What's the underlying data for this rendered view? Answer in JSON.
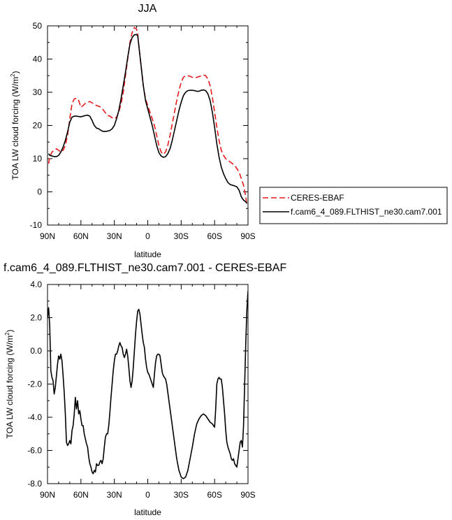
{
  "chart_data": [
    {
      "type": "line",
      "title": "JJA",
      "xlabel": "latitude",
      "ylabel": "TOA LW cloud forcing (W/m",
      "ylabel_sup": "2",
      "ylabel_end": ")",
      "xlim": [
        90,
        -90
      ],
      "ylim": [
        -10,
        50
      ],
      "xticks": [
        {
          "value": 90,
          "label": "90N"
        },
        {
          "value": 60,
          "label": "60N"
        },
        {
          "value": 30,
          "label": "30N"
        },
        {
          "value": 0,
          "label": "0"
        },
        {
          "value": -30,
          "label": "30S"
        },
        {
          "value": -60,
          "label": "60S"
        },
        {
          "value": -90,
          "label": "90S"
        }
      ],
      "yticks": [
        {
          "value": 50,
          "label": "50"
        },
        {
          "value": 40,
          "label": "40"
        },
        {
          "value": 30,
          "label": "30"
        },
        {
          "value": 20,
          "label": "20"
        },
        {
          "value": 10,
          "label": "10"
        },
        {
          "value": 0,
          "label": "0"
        },
        {
          "value": -10,
          "label": "-10"
        }
      ],
      "legend_placement": "right",
      "series": [
        {
          "name": "CERES-EBAF",
          "color": "#e41a1c",
          "dash": "dashed",
          "x": [
            89,
            88,
            86,
            84,
            82,
            80,
            78,
            76,
            74,
            72,
            70,
            68,
            66,
            64,
            62,
            60,
            58,
            56,
            54,
            52,
            50,
            48,
            46,
            44,
            42,
            40,
            38,
            36,
            34,
            32,
            30,
            28,
            26,
            24,
            22,
            20,
            18,
            16,
            14,
            12,
            10,
            9,
            8,
            6,
            4,
            2,
            0,
            -2,
            -4,
            -6,
            -8,
            -10,
            -12,
            -14,
            -16,
            -18,
            -20,
            -22,
            -24,
            -26,
            -28,
            -30,
            -32,
            -34,
            -36,
            -38,
            -40,
            -42,
            -44,
            -46,
            -48,
            -50,
            -52,
            -54,
            -56,
            -58,
            -60,
            -62,
            -64,
            -66,
            -68,
            -70,
            -72,
            -74,
            -76,
            -78,
            -80,
            -82,
            -84,
            -86,
            -88,
            -89
          ],
          "y": [
            8.5,
            10.5,
            12.0,
            12.5,
            13.0,
            12.5,
            12.0,
            12.5,
            14.0,
            17.0,
            22.0,
            26.5,
            28.0,
            28.2,
            27.5,
            25.5,
            26.0,
            26.7,
            27.0,
            27.2,
            26.8,
            26.5,
            26.0,
            25.8,
            25.5,
            24.7,
            23.8,
            23.0,
            22.8,
            22.3,
            22.0,
            22.5,
            24.0,
            26.5,
            30.0,
            35.0,
            40.0,
            45.0,
            48.0,
            49.5,
            49.0,
            47.5,
            44.0,
            38.0,
            32.0,
            28.0,
            26.0,
            24.0,
            22.0,
            20.0,
            17.0,
            14.0,
            12.0,
            11.3,
            12.0,
            14.0,
            17.0,
            20.5,
            24.0,
            27.5,
            30.5,
            33.0,
            34.5,
            35.0,
            35.0,
            34.8,
            34.5,
            34.3,
            34.5,
            34.7,
            35.0,
            35.2,
            35.0,
            34.0,
            32.0,
            28.5,
            24.0,
            19.5,
            15.5,
            12.5,
            11.0,
            10.0,
            9.5,
            9.0,
            8.5,
            8.0,
            7.0,
            6.0,
            4.0,
            2.0,
            -1.5,
            -4.0
          ]
        },
        {
          "name": "f.cam6_4_089.FLTHIST_ne30.cam7.001",
          "color": "#000000",
          "dash": "solid",
          "x": [
            89,
            88,
            86,
            84,
            82,
            80,
            78,
            76,
            74,
            72,
            70,
            68,
            66,
            64,
            62,
            60,
            58,
            56,
            54,
            52,
            50,
            48,
            46,
            44,
            42,
            40,
            38,
            36,
            34,
            32,
            30,
            28,
            26,
            24,
            22,
            20,
            18,
            16,
            14,
            12,
            10,
            9,
            8,
            6,
            4,
            2,
            0,
            -2,
            -4,
            -6,
            -8,
            -10,
            -12,
            -14,
            -16,
            -18,
            -20,
            -22,
            -24,
            -26,
            -28,
            -30,
            -32,
            -34,
            -36,
            -38,
            -40,
            -42,
            -44,
            -46,
            -48,
            -50,
            -52,
            -54,
            -56,
            -58,
            -60,
            -62,
            -64,
            -66,
            -68,
            -70,
            -72,
            -74,
            -76,
            -78,
            -80,
            -82,
            -84,
            -86,
            -88,
            -89
          ],
          "y": [
            11.5,
            11.0,
            10.8,
            10.6,
            10.6,
            11.0,
            12.0,
            13.5,
            15.5,
            18.0,
            21.0,
            22.5,
            22.8,
            22.8,
            22.7,
            22.6,
            22.8,
            23.0,
            23.1,
            22.8,
            21.5,
            20.0,
            19.2,
            19.0,
            18.5,
            18.2,
            18.2,
            18.3,
            18.5,
            19.0,
            20.0,
            22.0,
            24.5,
            28.0,
            32.0,
            36.0,
            40.5,
            44.5,
            46.5,
            47.3,
            47.4,
            47.0,
            44.0,
            38.0,
            32.0,
            27.5,
            25.0,
            22.5,
            20.0,
            17.0,
            14.0,
            11.8,
            10.8,
            10.4,
            10.6,
            11.5,
            13.0,
            15.5,
            18.5,
            21.5,
            24.5,
            27.0,
            29.0,
            30.0,
            30.5,
            30.6,
            30.6,
            30.5,
            30.3,
            30.3,
            30.6,
            30.7,
            30.5,
            29.5,
            27.5,
            24.0,
            19.5,
            14.5,
            10.5,
            7.5,
            5.5,
            4.0,
            2.8,
            2.2,
            2.0,
            1.8,
            1.5,
            0.5,
            -1.5,
            -2.5,
            -3.0,
            -3.5
          ]
        }
      ]
    },
    {
      "type": "line",
      "title": "f.cam6_4_089.FLTHIST_ne30.cam7.001 - CERES-EBAF",
      "xlabel": "latitude",
      "ylabel": "TOA LW cloud forcing (W/m",
      "ylabel_sup": "2",
      "ylabel_end": ")",
      "xlim": [
        90,
        -90
      ],
      "ylim": [
        -8,
        4
      ],
      "xticks": [
        {
          "value": 90,
          "label": "90N"
        },
        {
          "value": 60,
          "label": "60N"
        },
        {
          "value": 30,
          "label": "30N"
        },
        {
          "value": 0,
          "label": "0"
        },
        {
          "value": -30,
          "label": "30S"
        },
        {
          "value": -60,
          "label": "60S"
        },
        {
          "value": -90,
          "label": "90S"
        }
      ],
      "yticks": [
        {
          "value": 4,
          "label": "4.0"
        },
        {
          "value": 2,
          "label": "2.0"
        },
        {
          "value": 0,
          "label": "0.0"
        },
        {
          "value": -2,
          "label": "-2.0"
        },
        {
          "value": -4,
          "label": "-4.0"
        },
        {
          "value": -6,
          "label": "-6.0"
        },
        {
          "value": -8,
          "label": "-8.0"
        }
      ],
      "series": [
        {
          "name": "",
          "color": "#000000",
          "dash": "solid",
          "x": [
            90,
            89,
            88,
            87,
            86,
            85,
            84,
            83,
            82,
            81,
            80,
            79,
            78,
            77,
            76,
            75,
            74,
            73,
            72,
            71,
            70,
            69,
            68,
            67,
            66,
            65,
            64,
            63,
            62,
            61,
            60,
            59,
            58,
            57,
            56,
            55,
            54,
            53,
            52,
            51,
            50,
            49,
            48,
            47,
            46,
            45,
            44,
            43,
            42,
            41,
            40,
            39,
            38,
            37,
            36,
            35,
            34,
            33,
            32,
            31,
            30,
            29,
            28,
            27,
            26,
            25,
            24,
            23,
            22,
            21,
            20,
            19,
            18,
            17,
            16,
            15,
            14,
            13,
            12,
            11,
            10,
            9,
            8,
            7,
            6,
            5,
            4,
            3,
            2,
            1,
            0,
            -1,
            -2,
            -3,
            -4,
            -5,
            -6,
            -7,
            -8,
            -9,
            -10,
            -11,
            -12,
            -13,
            -14,
            -15,
            -16,
            -17,
            -18,
            -19,
            -20,
            -22,
            -24,
            -26,
            -28,
            -30,
            -32,
            -34,
            -36,
            -38,
            -40,
            -42,
            -44,
            -46,
            -48,
            -50,
            -52,
            -54,
            -56,
            -58,
            -60,
            -61,
            -62,
            -63,
            -64,
            -65,
            -66,
            -67,
            -68,
            -69,
            -70,
            -71,
            -72,
            -73,
            -74,
            -75,
            -76,
            -77,
            -78,
            -79,
            -80,
            -81,
            -82,
            -83,
            -84,
            -85,
            -86,
            -87,
            -88,
            -89,
            -90
          ],
          "y": [
            2.0,
            2.6,
            1.5,
            -1.2,
            -1.6,
            -1.8,
            -2.6,
            -2.2,
            -1.5,
            -0.8,
            -0.3,
            -0.5,
            -0.2,
            -0.6,
            -1.5,
            -2.5,
            -3.8,
            -5.5,
            -5.7,
            -5.6,
            -5.4,
            -5.6,
            -4.8,
            -4.5,
            -3.8,
            -2.8,
            -3.5,
            -3.0,
            -3.8,
            -3.6,
            -4.1,
            -4.5,
            -4.5,
            -5.0,
            -5.3,
            -5.6,
            -5.8,
            -6.4,
            -6.8,
            -7.0,
            -7.3,
            -7.4,
            -7.2,
            -7.3,
            -6.8,
            -6.9,
            -6.9,
            -6.7,
            -6.6,
            -6.8,
            -6.5,
            -5.8,
            -5.2,
            -5.0,
            -5.0,
            -4.5,
            -3.7,
            -2.8,
            -2.0,
            -1.2,
            -0.6,
            -0.2,
            -0.2,
            0.0,
            0.3,
            0.5,
            0.3,
            0.2,
            -0.2,
            -0.4,
            -0.2,
            0.1,
            -0.3,
            -1.0,
            -1.8,
            -2.2,
            -1.8,
            -1.0,
            0.0,
            1.0,
            1.8,
            2.4,
            2.5,
            2.2,
            1.6,
            1.0,
            0.5,
            0.2,
            -0.5,
            -1.0,
            -1.3,
            -1.4,
            -1.6,
            -1.8,
            -2.0,
            -2.2,
            -1.4,
            -0.7,
            -0.3,
            -0.2,
            -0.2,
            -0.3,
            -0.8,
            -1.3,
            -1.5,
            -1.6,
            -1.7,
            -2.0,
            -2.5,
            -3.0,
            -3.5,
            -4.5,
            -5.5,
            -6.5,
            -7.2,
            -7.6,
            -7.7,
            -7.6,
            -7.2,
            -6.5,
            -5.8,
            -5.0,
            -4.4,
            -4.1,
            -3.9,
            -3.8,
            -3.9,
            -4.1,
            -4.3,
            -4.4,
            -4.6,
            -3.5,
            -2.0,
            -1.7,
            -1.6,
            -1.7,
            -1.7,
            -2.2,
            -3.0,
            -3.8,
            -4.8,
            -5.5,
            -5.8,
            -6.0,
            -6.2,
            -6.5,
            -6.6,
            -6.5,
            -6.8,
            -6.9,
            -7.0,
            -6.5,
            -6.0,
            -5.5,
            -5.4,
            -5.8,
            -4.5,
            -2.0,
            0.5,
            2.5,
            3.6
          ]
        }
      ]
    }
  ]
}
